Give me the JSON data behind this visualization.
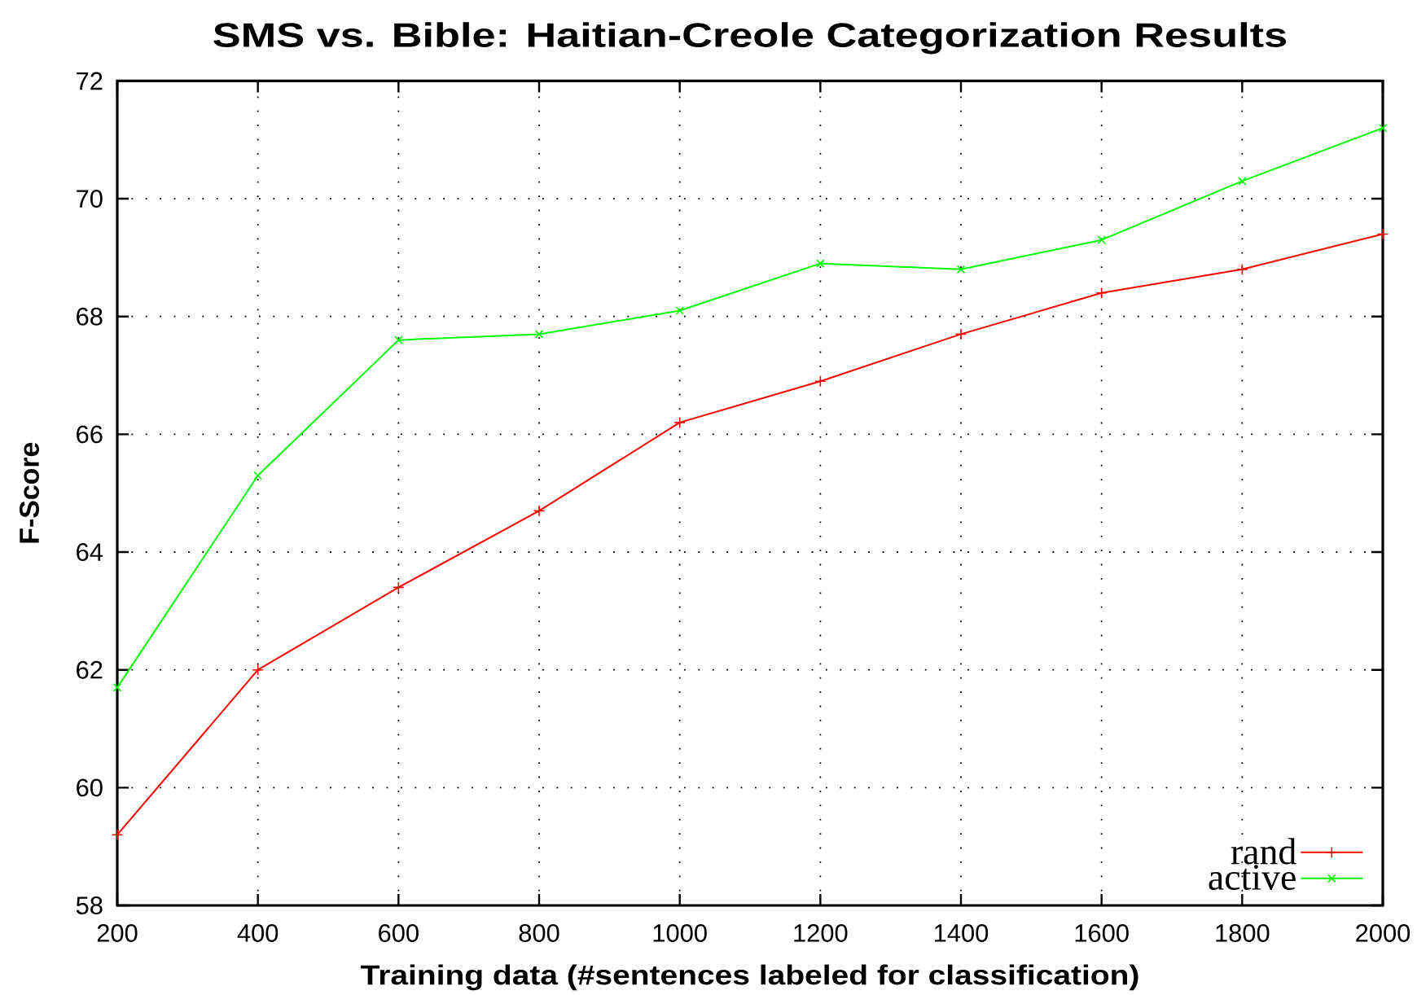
{
  "chart_data": {
    "type": "line",
    "title": "SMS vs. Bible: Haitian-Creole Categorization Results",
    "xlabel": "Training data (#sentences labeled for classification)",
    "ylabel": "F-Score",
    "x": [
      200,
      400,
      600,
      800,
      1000,
      1200,
      1400,
      1600,
      1800,
      2000
    ],
    "series": [
      {
        "name": "rand",
        "color": "#ff0000",
        "marker": "plus",
        "values": [
          59.2,
          62.0,
          63.4,
          64.7,
          66.2,
          66.9,
          67.7,
          68.4,
          68.8,
          69.4
        ]
      },
      {
        "name": "active",
        "color": "#00ff00",
        "marker": "cross",
        "values": [
          61.7,
          65.3,
          67.6,
          67.7,
          68.1,
          68.9,
          68.8,
          69.3,
          70.3,
          71.2
        ]
      }
    ],
    "xlim": [
      200,
      2000
    ],
    "ylim": [
      58,
      72
    ],
    "xticks": [
      200,
      400,
      600,
      800,
      1000,
      1200,
      1400,
      1600,
      1800,
      2000
    ],
    "yticks": [
      58,
      60,
      62,
      64,
      66,
      68,
      70,
      72
    ],
    "grid": true,
    "legend": "bottom right"
  }
}
